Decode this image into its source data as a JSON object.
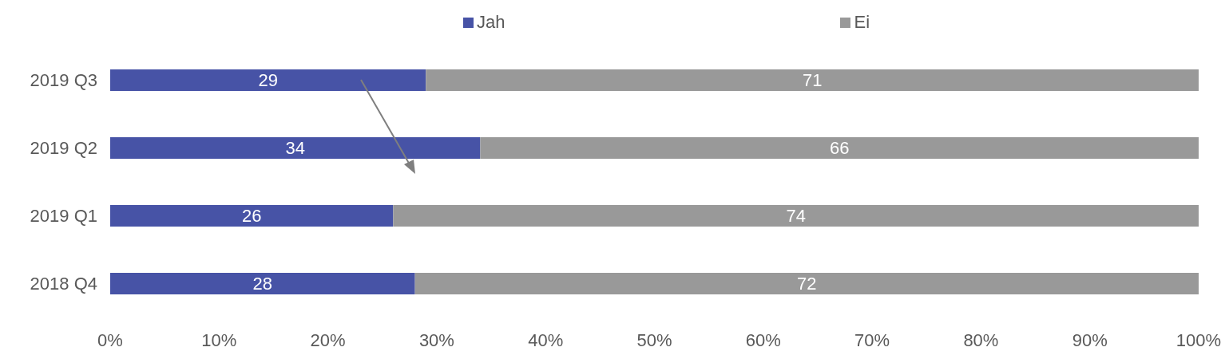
{
  "chart_data": {
    "type": "bar",
    "orientation": "horizontal",
    "stacked": true,
    "categories": [
      "2019 Q3",
      "2019 Q2",
      "2019 Q1",
      "2018 Q4"
    ],
    "series": [
      {
        "name": "Jah",
        "color": "#4753a6",
        "values": [
          29,
          34,
          26,
          28
        ]
      },
      {
        "name": "Ei",
        "color": "#999999",
        "values": [
          71,
          66,
          74,
          72
        ]
      }
    ],
    "xlim": [
      0,
      100
    ],
    "xticks": [
      {
        "value": 0,
        "label": "0%"
      },
      {
        "value": 10,
        "label": "10%"
      },
      {
        "value": 20,
        "label": "20%"
      },
      {
        "value": 30,
        "label": "30%"
      },
      {
        "value": 40,
        "label": "40%"
      },
      {
        "value": 50,
        "label": "50%"
      },
      {
        "value": 60,
        "label": "60%"
      },
      {
        "value": 70,
        "label": "70%"
      },
      {
        "value": 80,
        "label": "80%"
      },
      {
        "value": 90,
        "label": "90%"
      },
      {
        "value": 100,
        "label": "100%"
      }
    ],
    "data_labels": true,
    "legend": "top",
    "grid": false
  }
}
